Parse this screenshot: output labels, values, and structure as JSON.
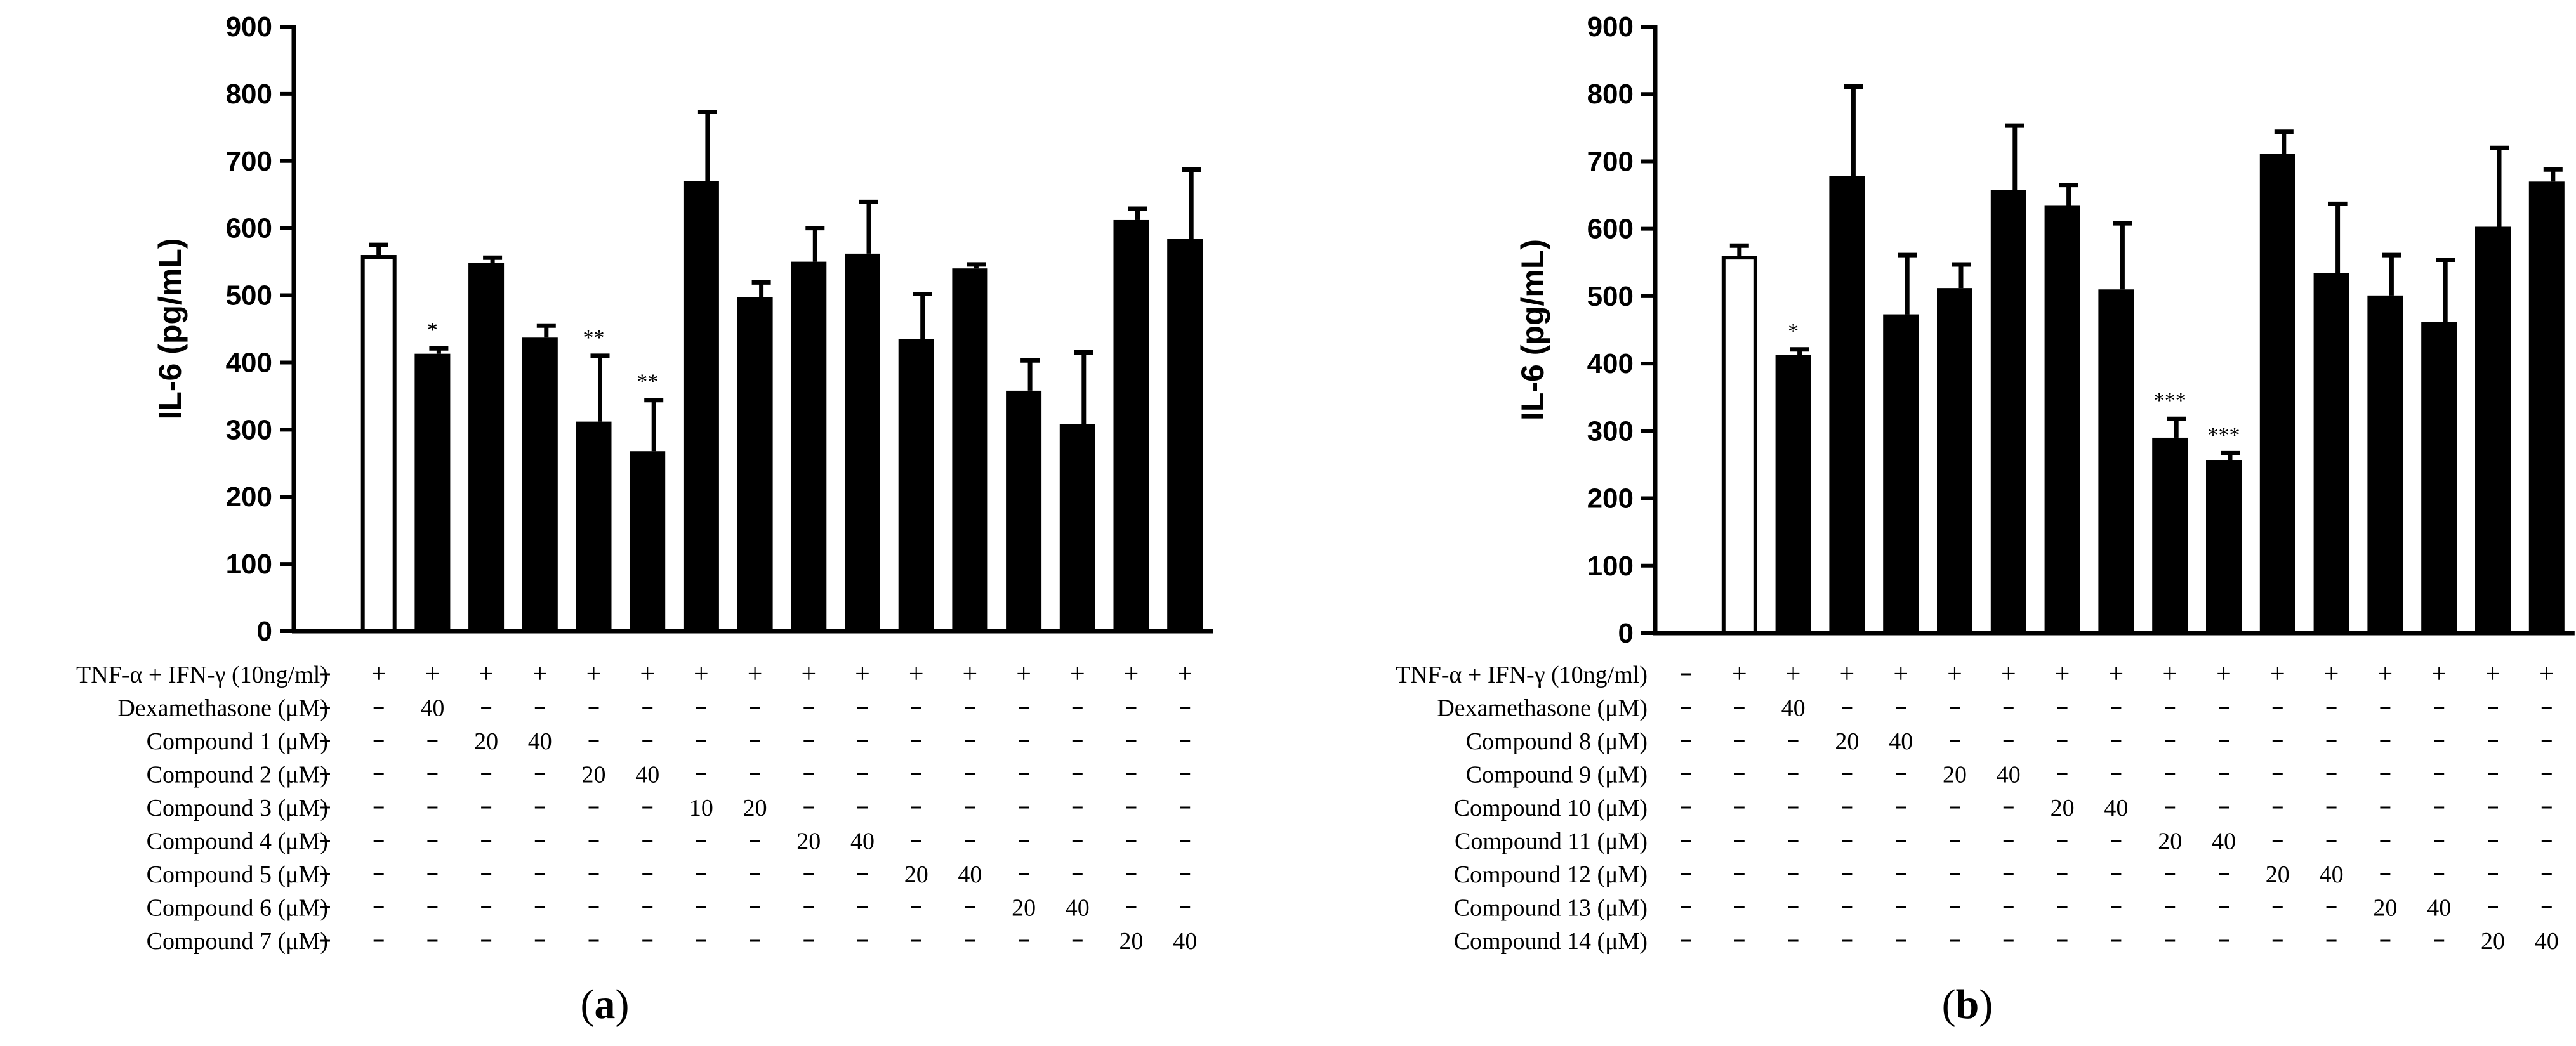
{
  "chart_data": [
    {
      "type": "bar",
      "panel_label": "a",
      "ylabel": "IL-6 (pg/mL)",
      "ylim": [
        0,
        900
      ],
      "yticks": [
        0,
        100,
        200,
        300,
        400,
        500,
        600,
        700,
        800,
        900
      ],
      "values": [
        3,
        560,
        413,
        548,
        437,
        312,
        268,
        670,
        497,
        550,
        562,
        435,
        540,
        358,
        308,
        612,
        584
      ],
      "errors": [
        0,
        15,
        8,
        8,
        18,
        98,
        76,
        103,
        22,
        50,
        77,
        67,
        6,
        45,
        107,
        17,
        103
      ],
      "fills": [
        "black",
        "white",
        "black",
        "black",
        "black",
        "black",
        "black",
        "black",
        "black",
        "black",
        "black",
        "black",
        "black",
        "black",
        "black",
        "black",
        "black"
      ],
      "significance": [
        "",
        "",
        "*",
        "",
        "",
        "**",
        "**",
        "",
        "",
        "",
        "",
        "",
        "",
        "",
        "",
        "",
        ""
      ],
      "treatment_table": [
        {
          "label": "TNF-α + IFN-γ (10ng/ml)",
          "cells": [
            "–",
            "+",
            "+",
            "+",
            "+",
            "+",
            "+",
            "+",
            "+",
            "+",
            "+",
            "+",
            "+",
            "+",
            "+",
            "+",
            "+"
          ]
        },
        {
          "label": "Dexamethasone (μM)",
          "cells": [
            "–",
            "–",
            "40",
            "–",
            "–",
            "–",
            "–",
            "–",
            "–",
            "–",
            "–",
            "–",
            "–",
            "–",
            "–",
            "–",
            "–"
          ]
        },
        {
          "label": "Compound 1 (μM)",
          "cells": [
            "–",
            "–",
            "–",
            "20",
            "40",
            "–",
            "–",
            "–",
            "–",
            "–",
            "–",
            "–",
            "–",
            "–",
            "–",
            "–",
            "–"
          ]
        },
        {
          "label": "Compound 2 (μM)",
          "cells": [
            "–",
            "–",
            "–",
            "–",
            "–",
            "20",
            "40",
            "–",
            "–",
            "–",
            "–",
            "–",
            "–",
            "–",
            "–",
            "–",
            "–"
          ]
        },
        {
          "label": "Compound 3 (μM)",
          "cells": [
            "–",
            "–",
            "–",
            "–",
            "–",
            "–",
            "–",
            "10",
            "20",
            "–",
            "–",
            "–",
            "–",
            "–",
            "–",
            "–",
            "–"
          ]
        },
        {
          "label": "Compound 4 (μM)",
          "cells": [
            "–",
            "–",
            "–",
            "–",
            "–",
            "–",
            "–",
            "–",
            "–",
            "20",
            "40",
            "–",
            "–",
            "–",
            "–",
            "–",
            "–"
          ]
        },
        {
          "label": "Compound 5 (μM)",
          "cells": [
            "–",
            "–",
            "–",
            "–",
            "–",
            "–",
            "–",
            "–",
            "–",
            "–",
            "–",
            "20",
            "40",
            "–",
            "–",
            "–",
            "–"
          ]
        },
        {
          "label": "Compound 6 (μM)",
          "cells": [
            "–",
            "–",
            "–",
            "–",
            "–",
            "–",
            "–",
            "–",
            "–",
            "–",
            "–",
            "–",
            "–",
            "20",
            "40",
            "–",
            "–"
          ]
        },
        {
          "label": "Compound 7 (μM)",
          "cells": [
            "–",
            "–",
            "–",
            "–",
            "–",
            "–",
            "–",
            "–",
            "–",
            "–",
            "–",
            "–",
            "–",
            "–",
            "–",
            "20",
            "40"
          ]
        }
      ]
    },
    {
      "type": "bar",
      "panel_label": "b",
      "ylabel": "IL-6 (pg/mL)",
      "ylim": [
        0,
        900
      ],
      "yticks": [
        0,
        100,
        200,
        300,
        400,
        500,
        600,
        700,
        800,
        900
      ],
      "values": [
        3,
        560,
        413,
        678,
        473,
        512,
        658,
        635,
        510,
        290,
        257,
        711,
        534,
        501,
        462,
        603,
        670
      ],
      "errors": [
        0,
        15,
        8,
        133,
        88,
        35,
        95,
        30,
        98,
        28,
        10,
        33,
        103,
        60,
        92,
        117,
        18
      ],
      "fills": [
        "black",
        "white",
        "black",
        "black",
        "black",
        "black",
        "black",
        "black",
        "black",
        "black",
        "black",
        "black",
        "black",
        "black",
        "black",
        "black",
        "black"
      ],
      "significance": [
        "",
        "",
        "*",
        "",
        "",
        "",
        "",
        "",
        "",
        "***",
        "***",
        "",
        "",
        "",
        "",
        "",
        ""
      ],
      "treatment_table": [
        {
          "label": "TNF-α + IFN-γ (10ng/ml)",
          "cells": [
            "–",
            "+",
            "+",
            "+",
            "+",
            "+",
            "+",
            "+",
            "+",
            "+",
            "+",
            "+",
            "+",
            "+",
            "+",
            "+",
            "+"
          ]
        },
        {
          "label": "Dexamethasone (μM)",
          "cells": [
            "–",
            "–",
            "40",
            "–",
            "–",
            "–",
            "–",
            "–",
            "–",
            "–",
            "–",
            "–",
            "–",
            "–",
            "–",
            "–",
            "–"
          ]
        },
        {
          "label": "Compound 8 (μM)",
          "cells": [
            "–",
            "–",
            "–",
            "20",
            "40",
            "–",
            "–",
            "–",
            "–",
            "–",
            "–",
            "–",
            "–",
            "–",
            "–",
            "–",
            "–"
          ]
        },
        {
          "label": "Compound 9 (μM)",
          "cells": [
            "–",
            "–",
            "–",
            "–",
            "–",
            "20",
            "40",
            "–",
            "–",
            "–",
            "–",
            "–",
            "–",
            "–",
            "–",
            "–",
            "–"
          ]
        },
        {
          "label": "Compound 10 (μM)",
          "cells": [
            "–",
            "–",
            "–",
            "–",
            "–",
            "–",
            "–",
            "20",
            "40",
            "–",
            "–",
            "–",
            "–",
            "–",
            "–",
            "–",
            "–"
          ]
        },
        {
          "label": "Compound 11 (μM)",
          "cells": [
            "–",
            "–",
            "–",
            "–",
            "–",
            "–",
            "–",
            "–",
            "–",
            "20",
            "40",
            "–",
            "–",
            "–",
            "–",
            "–",
            "–"
          ]
        },
        {
          "label": "Compound 12 (μM)",
          "cells": [
            "–",
            "–",
            "–",
            "–",
            "–",
            "–",
            "–",
            "–",
            "–",
            "–",
            "–",
            "20",
            "40",
            "–",
            "–",
            "–",
            "–"
          ]
        },
        {
          "label": "Compound 13 (μM)",
          "cells": [
            "–",
            "–",
            "–",
            "–",
            "–",
            "–",
            "–",
            "–",
            "–",
            "–",
            "–",
            "–",
            "–",
            "20",
            "40",
            "–",
            "–"
          ]
        },
        {
          "label": "Compound 14 (μM)",
          "cells": [
            "–",
            "–",
            "–",
            "–",
            "–",
            "–",
            "–",
            "–",
            "–",
            "–",
            "–",
            "–",
            "–",
            "–",
            "–",
            "20",
            "40"
          ]
        }
      ]
    }
  ]
}
